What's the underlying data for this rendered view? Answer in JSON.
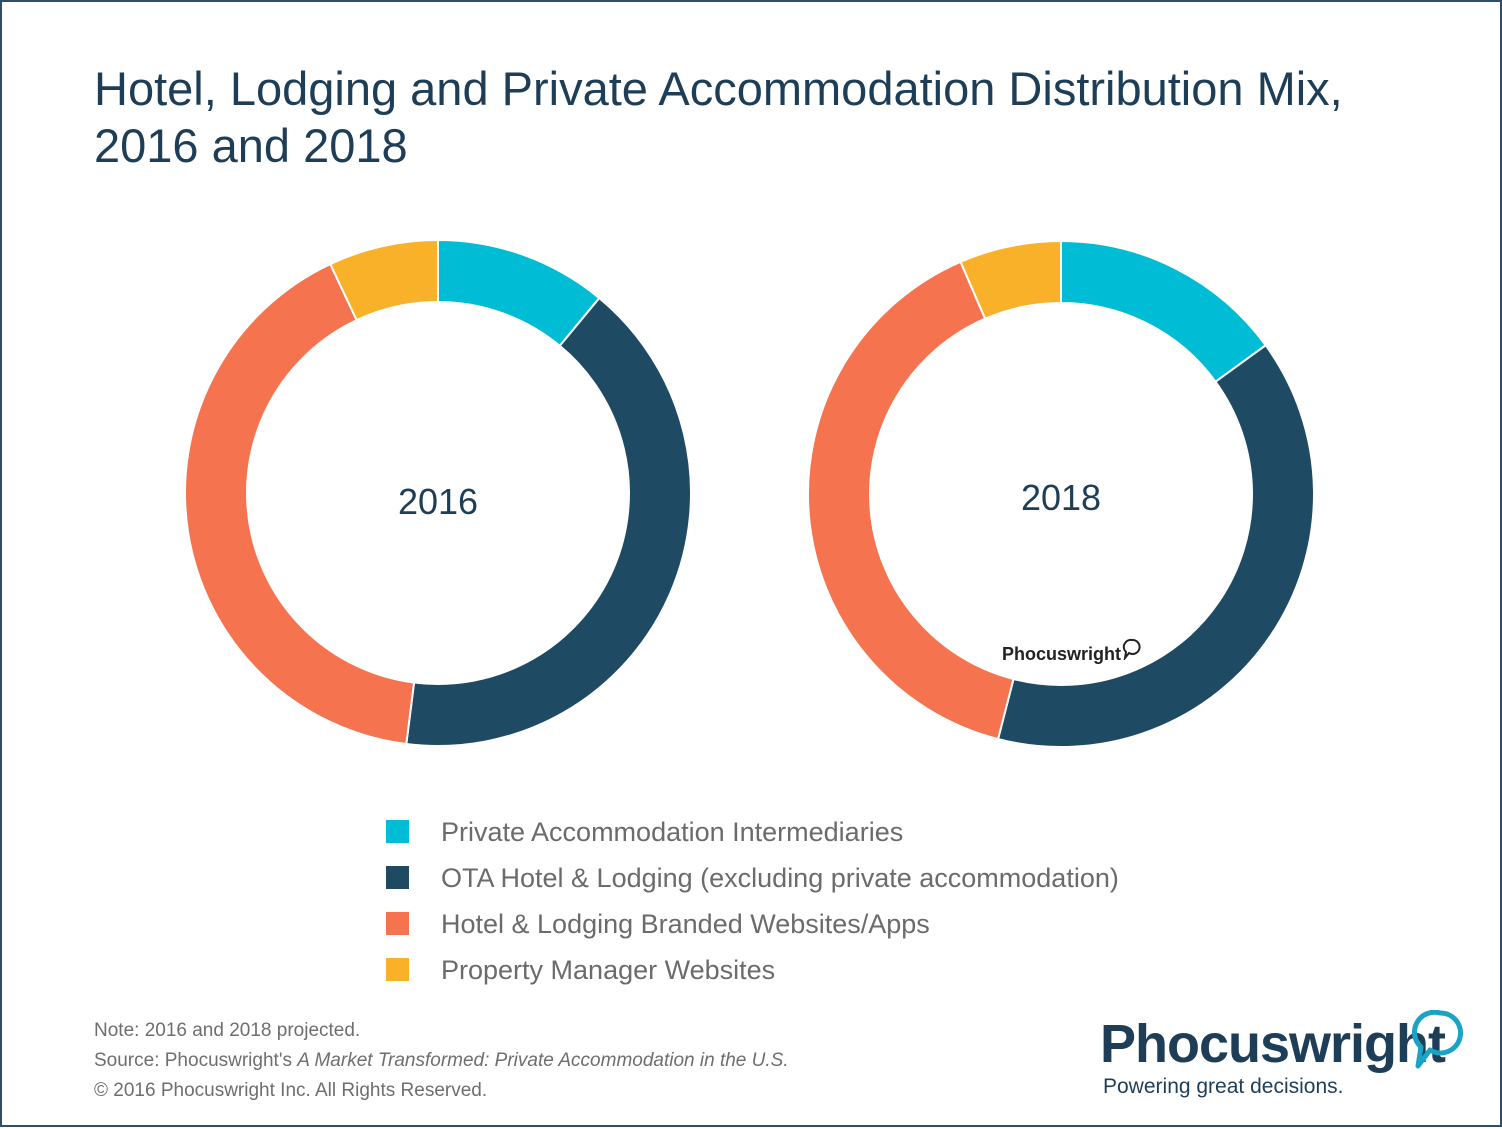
{
  "title": "Hotel, Lodging and Private Accommodation Distribution Mix, 2016 and 2018",
  "chart_data": [
    {
      "type": "pie",
      "variant": "donut",
      "center_label": "2016",
      "categories": [
        "Private Accommodation Intermediaries",
        "OTA Hotel & Lodging (excluding private accommodation)",
        "Hotel & Lodging Branded Websites/Apps",
        "Property Manager Websites"
      ],
      "values": [
        11,
        41,
        41,
        7
      ],
      "colors": [
        "#00bcd4",
        "#1e4a63",
        "#f5734e",
        "#f9b12a"
      ]
    },
    {
      "type": "pie",
      "variant": "donut",
      "center_label": "2018",
      "categories": [
        "Private Accommodation Intermediaries",
        "OTA Hotel & Lodging (excluding private accommodation)",
        "Hotel & Lodging Branded Websites/Apps",
        "Property Manager Websites"
      ],
      "values": [
        15,
        39,
        39.5,
        6.5
      ],
      "colors": [
        "#00bcd4",
        "#1e4a63",
        "#f5734e",
        "#f9b12a"
      ]
    }
  ],
  "legend": {
    "placement": "bottom-center",
    "items": [
      {
        "label": "Private Accommodation Intermediaries",
        "color": "#00bcd4"
      },
      {
        "label": "OTA Hotel & Lodging (excluding private accommodation)",
        "color": "#1e4a63"
      },
      {
        "label": "Hotel & Lodging Branded Websites/Apps",
        "color": "#f5734e"
      },
      {
        "label": "Property Manager Websites",
        "color": "#f9b12a"
      }
    ]
  },
  "notes": {
    "note": "Note: 2016 and 2018 projected.",
    "source_prefix": "Source: Phocuswright's ",
    "source_title": "A Market Transformed: Private Accommodation in the U.S.",
    "copyright": "© 2016 Phocuswright Inc. All Rights Reserved."
  },
  "brand": {
    "name": "Phocuswright",
    "tagline": "Powering great decisions.",
    "watermark": "Phocuswright",
    "color": "#1e3e58",
    "bubble_color": "#1aa3c7"
  }
}
